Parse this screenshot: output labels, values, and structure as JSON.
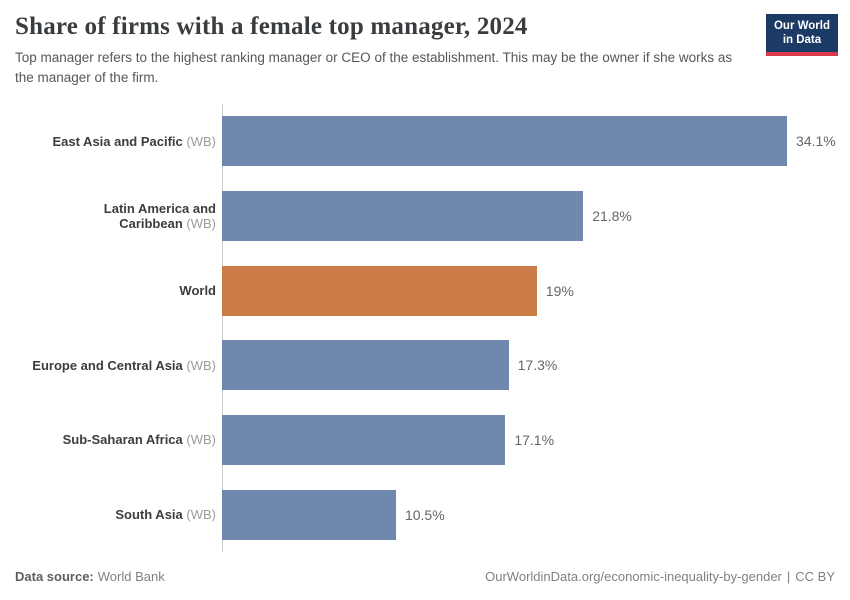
{
  "header": {
    "title": "Share of firms with a female top manager, 2024",
    "subtitle": "Top manager refers to the highest ranking manager or CEO of the establishment. This may be the owner if she works as the manager of the firm.",
    "logo": {
      "line1": "Our World",
      "line2": "in Data",
      "bg_color": "#1b3a64",
      "accent_color": "#d93a4a"
    }
  },
  "chart_data": {
    "type": "bar",
    "orientation": "horizontal",
    "title": "Share of firms with a female top manager, 2024",
    "xlabel": "",
    "ylabel": "",
    "unit": "%",
    "xlim": [
      0,
      34.1
    ],
    "grid": false,
    "categories": [
      "East Asia and Pacific (WB)",
      "Latin America and Caribbean (WB)",
      "World",
      "Europe and Central Asia (WB)",
      "Sub-Saharan Africa (WB)",
      "South Asia (WB)"
    ],
    "values": [
      34.1,
      21.8,
      19,
      17.3,
      17.1,
      10.5
    ],
    "default_bar_color": "#7088ad",
    "highlight_bar_color": "#ca7b46",
    "axis_line_color": "#cfcfcf",
    "bars": [
      {
        "name": "East Asia and Pacific",
        "suffix": "(WB)",
        "value": 34.1,
        "display": "34.1%",
        "color": "#7088ad"
      },
      {
        "name": "Latin America and Caribbean",
        "suffix": "(WB)",
        "value": 21.8,
        "display": "21.8%",
        "color": "#7088ad"
      },
      {
        "name": "World",
        "suffix": "",
        "value": 19,
        "display": "19%",
        "color": "#ca7b46"
      },
      {
        "name": "Europe and Central Asia",
        "suffix": "(WB)",
        "value": 17.3,
        "display": "17.3%",
        "color": "#7088ad"
      },
      {
        "name": "Sub-Saharan Africa",
        "suffix": "(WB)",
        "value": 17.1,
        "display": "17.1%",
        "color": "#7088ad"
      },
      {
        "name": "South Asia",
        "suffix": "(WB)",
        "value": 10.5,
        "display": "10.5%",
        "color": "#7088ad"
      }
    ]
  },
  "footer": {
    "source_label": "Data source:",
    "source_value": "World Bank",
    "link": "OurWorldinData.org/economic-inequality-by-gender",
    "separator": "|",
    "license": "CC BY"
  }
}
